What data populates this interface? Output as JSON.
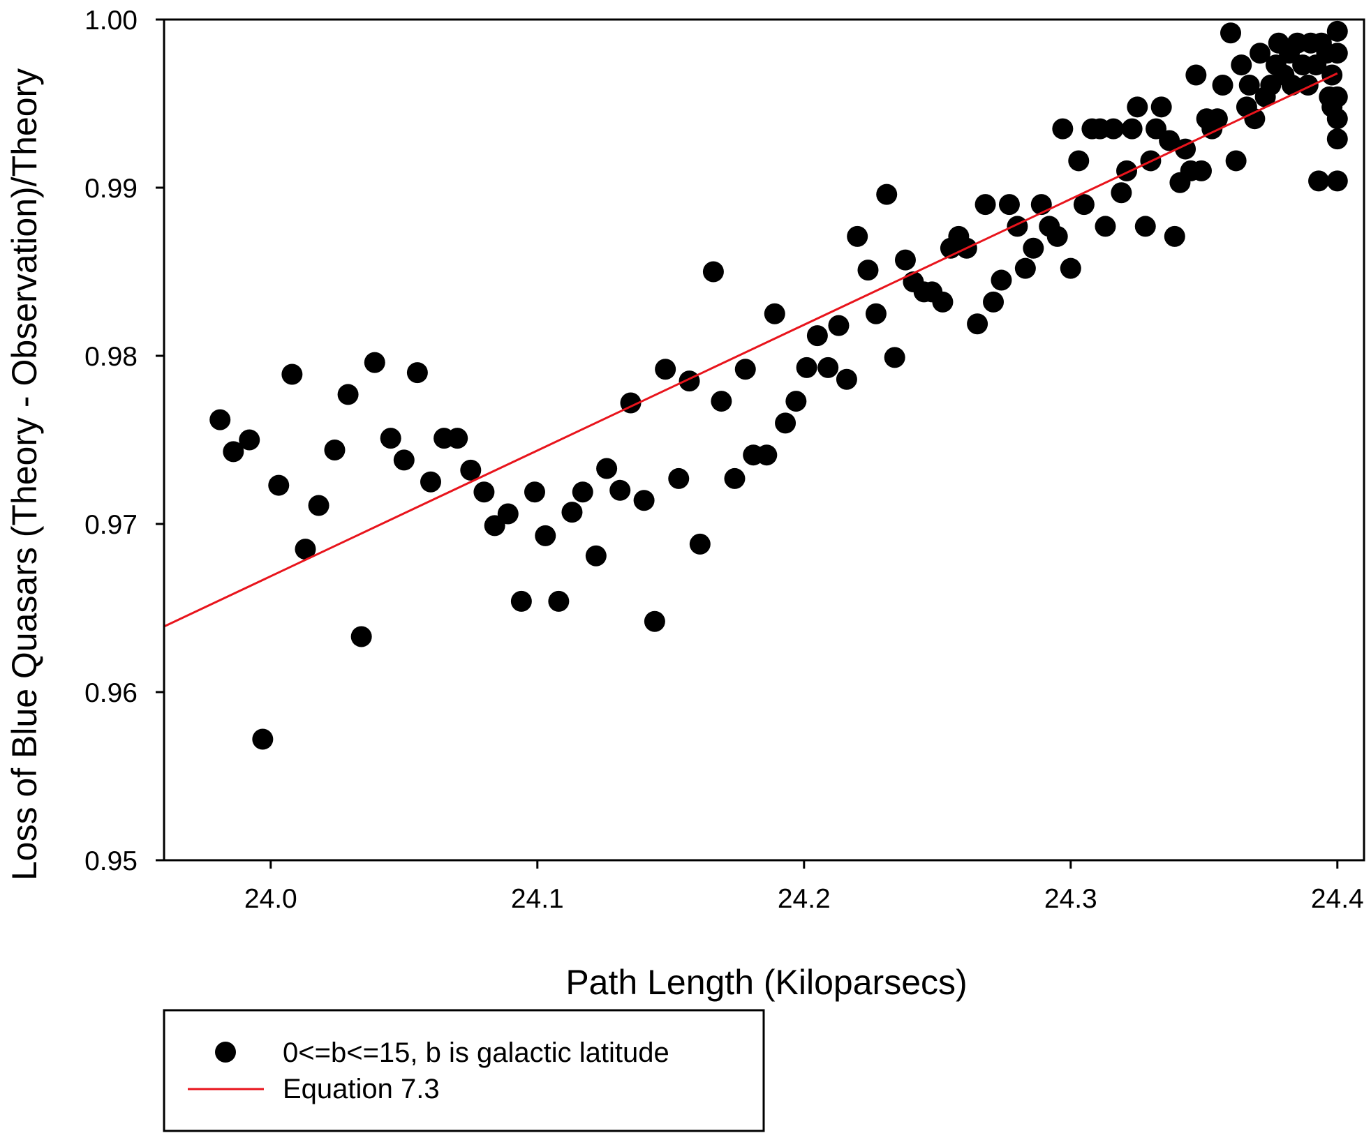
{
  "chart_data": {
    "type": "scatter",
    "title": "",
    "xlabel": "Path Length (Kiloparsecs)",
    "ylabel": "Loss of Blue Quasars (Theory - Observation)/Theory",
    "xlim": [
      23.96,
      24.41
    ],
    "ylim": [
      0.95,
      1.0
    ],
    "xticks": [
      "24.0",
      "24.1",
      "24.2",
      "24.3",
      "24.4"
    ],
    "yticks": [
      "0.95",
      "0.96",
      "0.97",
      "0.98",
      "0.99",
      "1.00"
    ],
    "grid": false,
    "legend_position": "below-left",
    "series": [
      {
        "name": "0<=b<=15, b is galactic latitude",
        "kind": "scatter",
        "color": "#000000",
        "points": [
          [
            23.981,
            0.9762
          ],
          [
            23.986,
            0.9743
          ],
          [
            23.992,
            0.975
          ],
          [
            23.997,
            0.9572
          ],
          [
            24.003,
            0.9723
          ],
          [
            24.008,
            0.9789
          ],
          [
            24.013,
            0.9685
          ],
          [
            24.018,
            0.9711
          ],
          [
            24.024,
            0.9744
          ],
          [
            24.029,
            0.9777
          ],
          [
            24.034,
            0.9633
          ],
          [
            24.039,
            0.9796
          ],
          [
            24.045,
            0.9751
          ],
          [
            24.05,
            0.9738
          ],
          [
            24.055,
            0.979
          ],
          [
            24.06,
            0.9725
          ],
          [
            24.065,
            0.9751
          ],
          [
            24.07,
            0.9751
          ],
          [
            24.075,
            0.9732
          ],
          [
            24.08,
            0.9719
          ],
          [
            24.084,
            0.9699
          ],
          [
            24.089,
            0.9706
          ],
          [
            24.094,
            0.9654
          ],
          [
            24.099,
            0.9719
          ],
          [
            24.103,
            0.9693
          ],
          [
            24.108,
            0.9654
          ],
          [
            24.113,
            0.9707
          ],
          [
            24.117,
            0.9719
          ],
          [
            24.122,
            0.9681
          ],
          [
            24.126,
            0.9733
          ],
          [
            24.131,
            0.972
          ],
          [
            24.135,
            0.9772
          ],
          [
            24.14,
            0.9714
          ],
          [
            24.144,
            0.9642
          ],
          [
            24.148,
            0.9792
          ],
          [
            24.153,
            0.9727
          ],
          [
            24.157,
            0.9785
          ],
          [
            24.161,
            0.9688
          ],
          [
            24.166,
            0.985
          ],
          [
            24.169,
            0.9773
          ],
          [
            24.174,
            0.9727
          ],
          [
            24.178,
            0.9792
          ],
          [
            24.181,
            0.9741
          ],
          [
            24.186,
            0.9741
          ],
          [
            24.189,
            0.9825
          ],
          [
            24.193,
            0.976
          ],
          [
            24.197,
            0.9773
          ],
          [
            24.201,
            0.9793
          ],
          [
            24.205,
            0.9812
          ],
          [
            24.209,
            0.9793
          ],
          [
            24.213,
            0.9818
          ],
          [
            24.216,
            0.9786
          ],
          [
            24.22,
            0.9871
          ],
          [
            24.224,
            0.9851
          ],
          [
            24.227,
            0.9825
          ],
          [
            24.231,
            0.9896
          ],
          [
            24.234,
            0.9799
          ],
          [
            24.238,
            0.9857
          ],
          [
            24.241,
            0.9844
          ],
          [
            24.245,
            0.9838
          ],
          [
            24.248,
            0.9838
          ],
          [
            24.252,
            0.9832
          ],
          [
            24.255,
            0.9864
          ],
          [
            24.258,
            0.9871
          ],
          [
            24.261,
            0.9864
          ],
          [
            24.265,
            0.9819
          ],
          [
            24.268,
            0.989
          ],
          [
            24.271,
            0.9832
          ],
          [
            24.274,
            0.9845
          ],
          [
            24.277,
            0.989
          ],
          [
            24.28,
            0.9877
          ],
          [
            24.283,
            0.9852
          ],
          [
            24.286,
            0.9864
          ],
          [
            24.289,
            0.989
          ],
          [
            24.292,
            0.9877
          ],
          [
            24.295,
            0.9871
          ],
          [
            24.297,
            0.9935
          ],
          [
            24.3,
            0.9852
          ],
          [
            24.303,
            0.9916
          ],
          [
            24.305,
            0.989
          ],
          [
            24.308,
            0.9935
          ],
          [
            24.311,
            0.9935
          ],
          [
            24.313,
            0.9877
          ],
          [
            24.316,
            0.9935
          ],
          [
            24.319,
            0.9897
          ],
          [
            24.321,
            0.991
          ],
          [
            24.323,
            0.9935
          ],
          [
            24.325,
            0.9948
          ],
          [
            24.328,
            0.9877
          ],
          [
            24.33,
            0.9916
          ],
          [
            24.332,
            0.9935
          ],
          [
            24.334,
            0.9948
          ],
          [
            24.337,
            0.9928
          ],
          [
            24.339,
            0.9871
          ],
          [
            24.341,
            0.9903
          ],
          [
            24.343,
            0.9923
          ],
          [
            24.345,
            0.991
          ],
          [
            24.347,
            0.9967
          ],
          [
            24.349,
            0.991
          ],
          [
            24.351,
            0.9941
          ],
          [
            24.353,
            0.9935
          ],
          [
            24.355,
            0.9941
          ],
          [
            24.357,
            0.9961
          ],
          [
            24.36,
            0.9992
          ],
          [
            24.362,
            0.9916
          ],
          [
            24.364,
            0.9973
          ],
          [
            24.366,
            0.9948
          ],
          [
            24.367,
            0.9961
          ],
          [
            24.369,
            0.9941
          ],
          [
            24.371,
            0.998
          ],
          [
            24.373,
            0.9954
          ],
          [
            24.375,
            0.9961
          ],
          [
            24.377,
            0.9973
          ],
          [
            24.378,
            0.9986
          ],
          [
            24.38,
            0.9967
          ],
          [
            24.382,
            0.998
          ],
          [
            24.383,
            0.9961
          ],
          [
            24.385,
            0.9986
          ],
          [
            24.387,
            0.9973
          ],
          [
            24.389,
            0.9961
          ],
          [
            24.39,
            0.9986
          ],
          [
            24.392,
            0.9973
          ],
          [
            24.393,
            0.9904
          ],
          [
            24.394,
            0.9986
          ],
          [
            24.396,
            0.998
          ],
          [
            24.397,
            0.9954
          ],
          [
            24.398,
            0.9967
          ],
          [
            24.398,
            0.9948
          ],
          [
            24.4,
            0.9993
          ],
          [
            24.4,
            0.998
          ],
          [
            24.4,
            0.9954
          ],
          [
            24.4,
            0.9941
          ],
          [
            24.4,
            0.9929
          ],
          [
            24.4,
            0.9904
          ]
        ]
      },
      {
        "name": "Equation 7.3",
        "kind": "line",
        "color": "#e8141c",
        "points": [
          [
            23.96,
            0.9639
          ],
          [
            24.4,
            0.9968
          ]
        ]
      }
    ]
  }
}
